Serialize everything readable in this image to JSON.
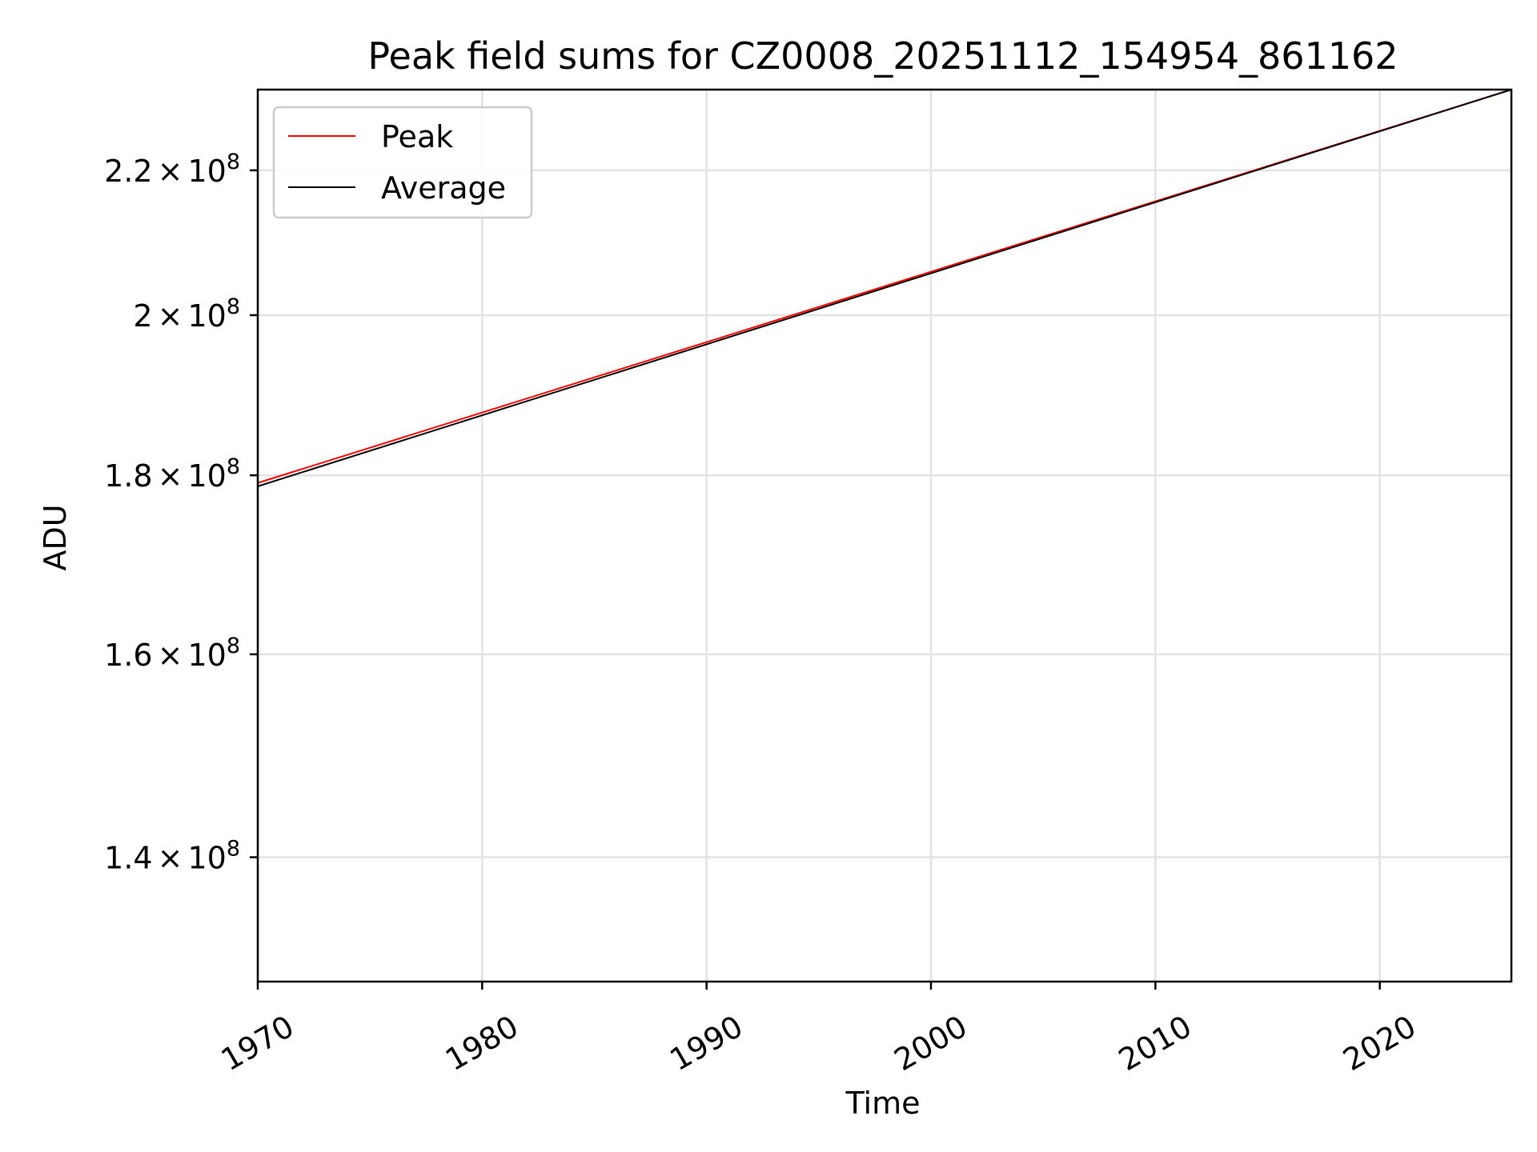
{
  "chart_data": {
    "type": "line",
    "title": "Peak field sums for CZ0008_20251112_154954_861162",
    "xlabel": "Time",
    "ylabel": "ADU",
    "x_scale": "date",
    "y_scale": "log",
    "xlim": [
      "1970-01-01",
      "2025-11-12"
    ],
    "ylim": [
      129000000,
      232000000
    ],
    "x_ticks": [
      {
        "value": "1970-01-01",
        "label": "1970"
      },
      {
        "value": "1980-01-01",
        "label": "1980"
      },
      {
        "value": "1990-01-01",
        "label": "1990"
      },
      {
        "value": "2000-01-01",
        "label": "2000"
      },
      {
        "value": "2010-01-01",
        "label": "2010"
      },
      {
        "value": "2020-01-01",
        "label": "2020"
      }
    ],
    "y_ticks": [
      {
        "value": 140000000,
        "mantissa": "1.4",
        "times": "×",
        "base": "10",
        "exponent": "8"
      },
      {
        "value": 160000000,
        "mantissa": "1.6",
        "times": "×",
        "base": "10",
        "exponent": "8"
      },
      {
        "value": 180000000,
        "mantissa": "1.8",
        "times": "×",
        "base": "10",
        "exponent": "8"
      },
      {
        "value": 200000000,
        "mantissa": "2",
        "times": "×",
        "base": "10",
        "exponent": "8"
      },
      {
        "value": 220000000,
        "mantissa": "2.2",
        "times": "×",
        "base": "10",
        "exponent": "8"
      }
    ],
    "grid": true,
    "legend_position": "top-left",
    "series": [
      {
        "name": "Peak",
        "color": "#ff0000",
        "points": [
          {
            "x": "1970-01-01",
            "y": 179100000
          },
          {
            "x": "2025-11-12",
            "y": 232000000
          }
        ]
      },
      {
        "name": "Average",
        "color": "#000000",
        "points": [
          {
            "x": "1970-01-01",
            "y": 178700000
          },
          {
            "x": "2025-11-12",
            "y": 232000000
          }
        ]
      }
    ]
  }
}
